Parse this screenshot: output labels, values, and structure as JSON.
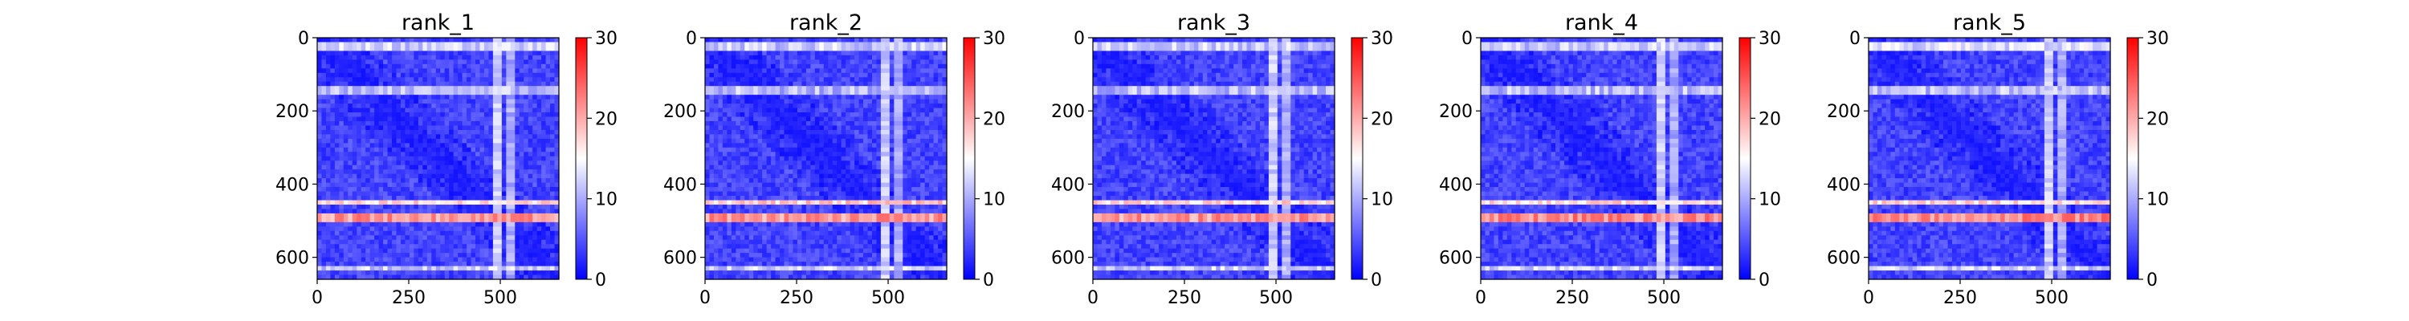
{
  "chart_data": [
    {
      "type": "heatmap",
      "title": "rank_1",
      "xlim": [
        0,
        660
      ],
      "ylim": [
        660,
        0
      ],
      "x_ticks": [
        0,
        250,
        500
      ],
      "y_ticks": [
        0,
        200,
        400,
        600
      ],
      "colorbar": {
        "min": 0,
        "max": 30,
        "ticks": [
          0,
          10,
          20,
          30
        ],
        "colormap": [
          "#0000ff",
          "#ffffff",
          "#ff0000"
        ]
      },
      "base_value": 4,
      "diagonal_band": {
        "value": 1,
        "width": 40
      },
      "bright_rows": [
        {
          "center": 25,
          "value": 12
        },
        {
          "center": 140,
          "value": 11
        },
        {
          "center": 450,
          "value": 17
        },
        {
          "center": 495,
          "value": 21
        },
        {
          "center": 630,
          "value": 12
        }
      ],
      "bright_columns": [
        {
          "center": 490,
          "value": 12
        },
        {
          "center": 525,
          "value": 10
        }
      ]
    },
    {
      "type": "heatmap",
      "title": "rank_2",
      "xlim": [
        0,
        660
      ],
      "ylim": [
        660,
        0
      ],
      "x_ticks": [
        0,
        250,
        500
      ],
      "y_ticks": [
        0,
        200,
        400,
        600
      ],
      "colorbar": {
        "min": 0,
        "max": 30,
        "ticks": [
          0,
          10,
          20,
          30
        ],
        "colormap": [
          "#0000ff",
          "#ffffff",
          "#ff0000"
        ]
      },
      "base_value": 4,
      "diagonal_band": {
        "value": 1,
        "width": 40
      },
      "bright_rows": [
        {
          "center": 25,
          "value": 12
        },
        {
          "center": 140,
          "value": 11
        },
        {
          "center": 450,
          "value": 18
        },
        {
          "center": 495,
          "value": 21
        },
        {
          "center": 630,
          "value": 12
        }
      ],
      "bright_columns": [
        {
          "center": 490,
          "value": 12
        },
        {
          "center": 525,
          "value": 10
        }
      ]
    },
    {
      "type": "heatmap",
      "title": "rank_3",
      "xlim": [
        0,
        660
      ],
      "ylim": [
        660,
        0
      ],
      "x_ticks": [
        0,
        250,
        500
      ],
      "y_ticks": [
        0,
        200,
        400,
        600
      ],
      "colorbar": {
        "min": 0,
        "max": 30,
        "ticks": [
          0,
          10,
          20,
          30
        ],
        "colormap": [
          "#0000ff",
          "#ffffff",
          "#ff0000"
        ]
      },
      "base_value": 4,
      "diagonal_band": {
        "value": 1,
        "width": 40
      },
      "bright_rows": [
        {
          "center": 25,
          "value": 12
        },
        {
          "center": 140,
          "value": 11
        },
        {
          "center": 450,
          "value": 17
        },
        {
          "center": 495,
          "value": 21
        },
        {
          "center": 630,
          "value": 12
        }
      ],
      "bright_columns": [
        {
          "center": 490,
          "value": 12
        },
        {
          "center": 525,
          "value": 10
        }
      ]
    },
    {
      "type": "heatmap",
      "title": "rank_4",
      "xlim": [
        0,
        660
      ],
      "ylim": [
        660,
        0
      ],
      "x_ticks": [
        0,
        250,
        500
      ],
      "y_ticks": [
        0,
        200,
        400,
        600
      ],
      "colorbar": {
        "min": 0,
        "max": 30,
        "ticks": [
          0,
          10,
          20,
          30
        ],
        "colormap": [
          "#0000ff",
          "#ffffff",
          "#ff0000"
        ]
      },
      "base_value": 4,
      "diagonal_band": {
        "value": 1,
        "width": 40
      },
      "bright_rows": [
        {
          "center": 25,
          "value": 12
        },
        {
          "center": 140,
          "value": 11
        },
        {
          "center": 450,
          "value": 17
        },
        {
          "center": 495,
          "value": 22
        },
        {
          "center": 630,
          "value": 12
        }
      ],
      "bright_columns": [
        {
          "center": 490,
          "value": 12
        },
        {
          "center": 525,
          "value": 10
        }
      ]
    },
    {
      "type": "heatmap",
      "title": "rank_5",
      "xlim": [
        0,
        660
      ],
      "ylim": [
        660,
        0
      ],
      "x_ticks": [
        0,
        250,
        500
      ],
      "y_ticks": [
        0,
        200,
        400,
        600
      ],
      "colorbar": {
        "min": 0,
        "max": 30,
        "ticks": [
          0,
          10,
          20,
          30
        ],
        "colormap": [
          "#0000ff",
          "#ffffff",
          "#ff0000"
        ]
      },
      "base_value": 4,
      "diagonal_band": {
        "value": 1,
        "width": 40
      },
      "bright_rows": [
        {
          "center": 25,
          "value": 13
        },
        {
          "center": 140,
          "value": 11
        },
        {
          "center": 450,
          "value": 17
        },
        {
          "center": 495,
          "value": 22
        },
        {
          "center": 630,
          "value": 12
        }
      ],
      "bright_columns": [
        {
          "center": 490,
          "value": 12
        },
        {
          "center": 525,
          "value": 10
        }
      ]
    }
  ]
}
